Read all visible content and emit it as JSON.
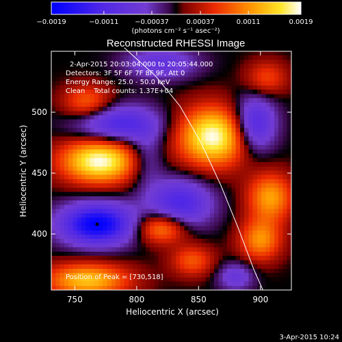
{
  "chart_data": {
    "type": "heatmap",
    "title": "Reconstructed RHESSI Image",
    "xlabel": "Heliocentric X (arcsec)",
    "ylabel": "Heliocentric Y (arcsec)",
    "xlim": [
      731,
      925
    ],
    "ylim": [
      354,
      550
    ],
    "x_ticks": [
      750,
      800,
      850,
      900
    ],
    "y_ticks": [
      400,
      450,
      500
    ],
    "colorbar": {
      "label": "(photons cm⁻² s⁻¹ asec⁻²)",
      "range": [
        -0.0019,
        0.0019
      ],
      "tick_labels": [
        "−0.0019",
        "−0.0011",
        "−0.00037",
        "0.00037",
        "0.0011",
        "0.0019"
      ],
      "tick_values": [
        -0.0019,
        -0.0011,
        -0.00037,
        0.00037,
        0.0011,
        0.0019
      ]
    },
    "info_lines": [
      "2-Apr-2015 20:03:04.000 to 20:05:44.000",
      "Detectors: 3F 5F 6F 7F 8F 9F, Att 0",
      "Energy Range: 25.0 - 50.0 keV",
      "Clean    Total counts: 1.37E+04"
    ],
    "peak_label": "Position of Peak = [730,518]",
    "timestamp": "3-Apr-2015 10:24",
    "limb_curve": [
      [
        790,
        553
      ],
      [
        815,
        530
      ],
      [
        835,
        505
      ],
      [
        852,
        475
      ],
      [
        868,
        440
      ],
      [
        882,
        405
      ],
      [
        895,
        370
      ],
      [
        902,
        354
      ]
    ],
    "blobs": [
      {
        "x": 770,
        "y": 460,
        "amp": 0.0019,
        "sx": 22,
        "sy": 13
      },
      {
        "x": 862,
        "y": 480,
        "amp": 0.0019,
        "sx": 20,
        "sy": 17
      },
      {
        "x": 760,
        "y": 508,
        "amp": 0.0009,
        "sx": 14,
        "sy": 10
      },
      {
        "x": 908,
        "y": 430,
        "amp": 0.0012,
        "sx": 13,
        "sy": 14
      },
      {
        "x": 820,
        "y": 405,
        "amp": 0.0012,
        "sx": 14,
        "sy": 9
      },
      {
        "x": 845,
        "y": 378,
        "amp": 0.0008,
        "sx": 12,
        "sy": 9
      },
      {
        "x": 900,
        "y": 395,
        "amp": 0.0011,
        "sx": 12,
        "sy": 12
      },
      {
        "x": 760,
        "y": 362,
        "amp": 0.0014,
        "sx": 24,
        "sy": 10
      },
      {
        "x": 905,
        "y": 528,
        "amp": 0.0007,
        "sx": 12,
        "sy": 10
      },
      {
        "x": 768,
        "y": 408,
        "amp": -0.0019,
        "sx": 21,
        "sy": 12
      },
      {
        "x": 785,
        "y": 490,
        "amp": -0.0012,
        "sx": 24,
        "sy": 11
      },
      {
        "x": 835,
        "y": 425,
        "amp": -0.0012,
        "sx": 18,
        "sy": 14
      },
      {
        "x": 895,
        "y": 490,
        "amp": -0.0013,
        "sx": 12,
        "sy": 16
      },
      {
        "x": 880,
        "y": 365,
        "amp": -0.0007,
        "sx": 10,
        "sy": 8
      },
      {
        "x": 820,
        "y": 540,
        "amp": -0.0008,
        "sx": 20,
        "sy": 9
      },
      {
        "x": 808,
        "y": 462,
        "amp": -0.0006,
        "sx": 10,
        "sy": 16
      }
    ]
  }
}
